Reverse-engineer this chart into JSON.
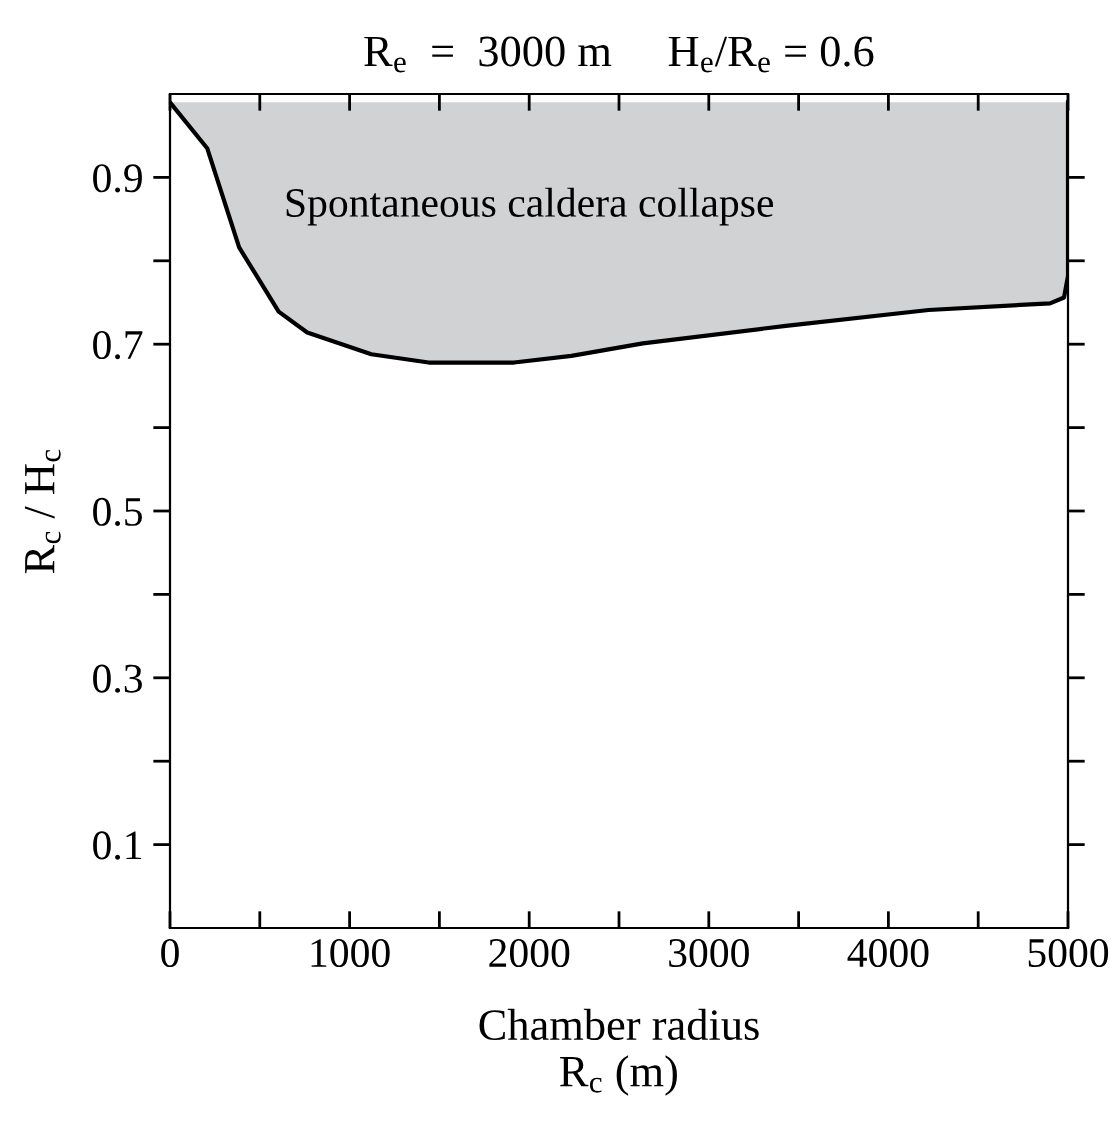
{
  "chart_data": {
    "type": "area",
    "title": "R$_{e}$  =  3000 m     H$_{e}$/R$_{e}$ = 0.6",
    "xlabel": "Chamber radius\nR$_{c}$ (m)",
    "ylabel": "R$_{c}$ / H$_{c}$",
    "x": [
      0,
      207,
      385,
      605,
      764,
      1121,
      1440,
      1916,
      2235,
      2633,
      3429,
      4224,
      4900,
      4978,
      5000,
      5000
    ],
    "series": [
      {
        "color": "#d1d2d4",
        "values": [
          0.99,
          0.935,
          0.816,
          0.739,
          0.714,
          0.688,
          0.678,
          0.678,
          0.686,
          0.701,
          0.722,
          0.741,
          0.749,
          0.756,
          0.782,
          0.99
        ]
      }
    ],
    "annotations": [
      "Spontaneous caldera collapse"
    ],
    "xlim": [
      0,
      5000
    ],
    "ylim": [
      0,
      1.0
    ],
    "xticks": [
      0,
      {
        "value": 500,
        "label": null
      },
      1000,
      {
        "value": 1500,
        "label": null
      },
      2000,
      {
        "value": 2500,
        "label": null
      },
      3000,
      {
        "value": 3500,
        "label": null
      },
      4000,
      {
        "value": 4500,
        "label": null
      },
      5000
    ],
    "yticks": [
      0.1,
      {
        "value": 0.2,
        "label": null
      },
      0.3,
      {
        "value": 0.4,
        "label": null
      },
      0.5,
      {
        "value": 0.6,
        "label": null
      },
      0.7,
      {
        "value": 0.8,
        "label": null
      },
      0.9
    ],
    "grid": false,
    "legend": false
  }
}
